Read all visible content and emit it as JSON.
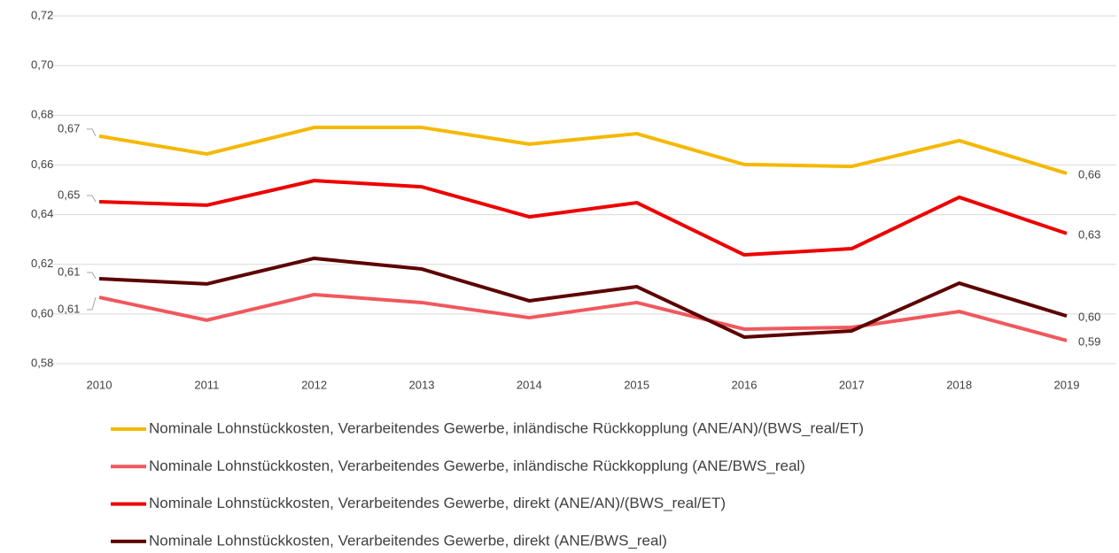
{
  "chart_data": {
    "type": "line",
    "categories": [
      "2010",
      "2011",
      "2012",
      "2013",
      "2014",
      "2015",
      "2016",
      "2017",
      "2018",
      "2019"
    ],
    "ylim": [
      0.58,
      0.72
    ],
    "yticks": [
      {
        "value": 0.58,
        "label": "0,58"
      },
      {
        "value": 0.6,
        "label": "0,60"
      },
      {
        "value": 0.62,
        "label": "0,62"
      },
      {
        "value": 0.64,
        "label": "0,64"
      },
      {
        "value": 0.66,
        "label": "0,66"
      },
      {
        "value": 0.68,
        "label": "0,68"
      },
      {
        "value": 0.7,
        "label": "0,70"
      },
      {
        "value": 0.72,
        "label": "0,72"
      }
    ],
    "grid": true,
    "legend": "bottom",
    "series": [
      {
        "name": "Nominale Lohnstückkosten, Verarbeitendes Gewerbe, inländische Rückkopplung (ANE/AN)/(BWS_real/ET)",
        "color": "#f5b800",
        "values": [
          0.6716,
          0.6644,
          0.6751,
          0.6751,
          0.6684,
          0.6726,
          0.6602,
          0.6594,
          0.6698,
          0.6566
        ],
        "value_labels": [
          "0,67",
          null,
          null,
          null,
          null,
          null,
          null,
          null,
          null,
          "0,66"
        ]
      },
      {
        "name": "Nominale Lohnstückkosten, Verarbeitendes Gewerbe, inländische Rückkopplung (ANE/BWS_real)",
        "color": "#f0585d",
        "values": [
          0.6067,
          0.5975,
          0.6078,
          0.6046,
          0.5985,
          0.6046,
          0.5939,
          0.5946,
          0.601,
          0.5893
        ],
        "value_labels": [
          "0,61",
          null,
          null,
          null,
          null,
          null,
          null,
          null,
          null,
          "0,59"
        ]
      },
      {
        "name": "Nominale Lohnstückkosten, Verarbeitendes Gewerbe, direkt (ANE/AN)/(BWS_real/ET)",
        "color": "#ee0000",
        "values": [
          0.6452,
          0.6438,
          0.6537,
          0.6512,
          0.6391,
          0.6448,
          0.6238,
          0.6263,
          0.647,
          0.6324
        ],
        "value_labels": [
          "0,65",
          null,
          null,
          null,
          null,
          null,
          null,
          null,
          null,
          "0,63"
        ]
      },
      {
        "name": "Nominale Lohnstückkosten, Verarbeitendes Gewerbe, direkt (ANE/BWS_real)",
        "color": "#5c0000",
        "values": [
          0.6142,
          0.6121,
          0.6224,
          0.6181,
          0.6053,
          0.611,
          0.5907,
          0.5932,
          0.6124,
          0.5992
        ],
        "value_labels": [
          "0,61",
          null,
          null,
          null,
          null,
          null,
          null,
          null,
          null,
          "0,60"
        ]
      }
    ]
  }
}
